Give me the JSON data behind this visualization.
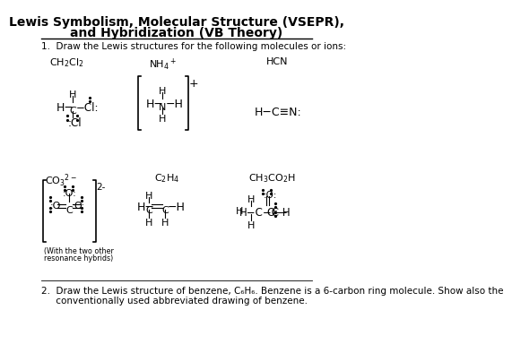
{
  "title_line1": "Lewis Symbolism, Molecular Structure (VSEPR),",
  "title_line2": "and Hybridization (VB Theory)",
  "instruction": "1.  Draw the Lewis structures for the following molecules or ions:",
  "q2_line1": "2.  Draw the Lewis structure of benzene, C₆H₆. Benzene is a 6-carbon ring molecule. Show also the",
  "q2_line2": "     conventionally used abbreviated drawing of benzene.",
  "bg_color": "#ffffff",
  "text_color": "#000000"
}
